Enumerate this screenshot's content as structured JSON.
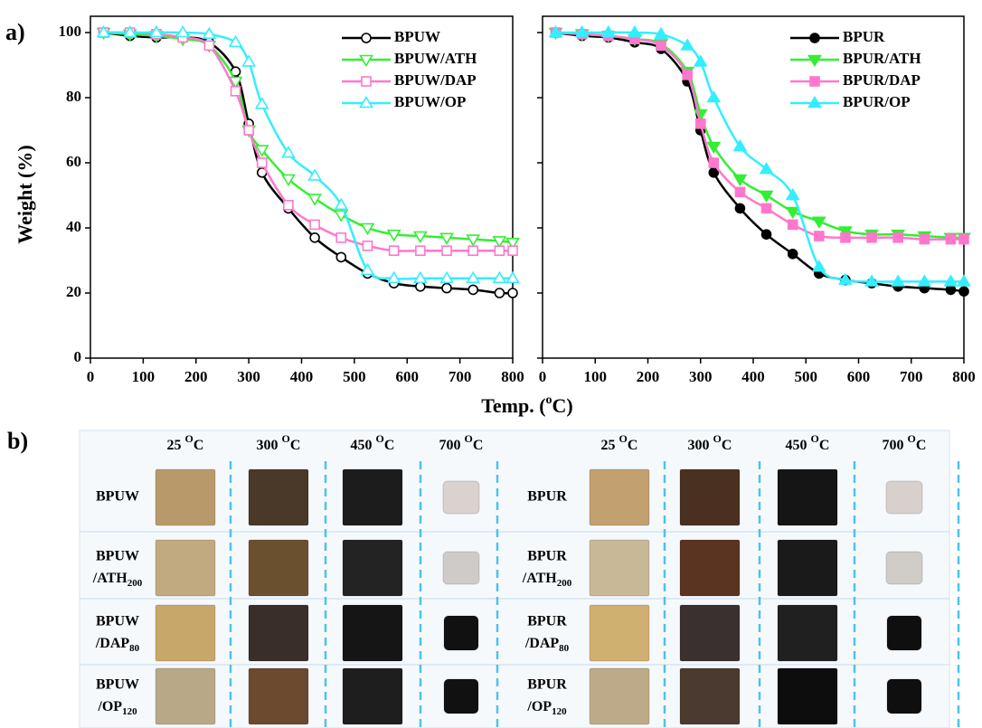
{
  "figure": {
    "panel_a": "a)",
    "panel_b": "b)",
    "y_label": "Weight (%)",
    "x_label": {
      "text": "Temp. (",
      "sup": "o",
      "end": "C)"
    }
  },
  "chart_data": [
    {
      "type": "line",
      "xlim": [
        0,
        800
      ],
      "ylim": [
        0,
        105
      ],
      "xticks": [
        0,
        100,
        200,
        300,
        400,
        500,
        600,
        700,
        800
      ],
      "yticks": [
        0,
        20,
        40,
        60,
        80,
        100
      ],
      "ytick_labels": true,
      "markers_filled": false,
      "x": [
        25,
        75,
        125,
        175,
        225,
        275,
        300,
        325,
        375,
        425,
        475,
        525,
        575,
        625,
        675,
        725,
        775,
        800
      ],
      "series": [
        {
          "name": "BPUW",
          "color": "#000000",
          "marker": "circle",
          "values": [
            100,
            99,
            98.5,
            98.5,
            97,
            88,
            72,
            57,
            46,
            37,
            31,
            26,
            23,
            22,
            21.5,
            21,
            20,
            20
          ]
        },
        {
          "name": "BPUW/ATH",
          "color": "#33ee33",
          "marker": "triangle-down",
          "values": [
            100,
            99.5,
            99,
            98,
            96,
            85,
            70,
            64,
            55,
            49,
            44,
            40,
            38,
            37.5,
            37,
            36.5,
            36,
            35.5
          ]
        },
        {
          "name": "BPUW/DAP",
          "color": "#ff77cc",
          "marker": "square",
          "values": [
            100,
            100,
            99.5,
            98.5,
            96,
            82,
            70,
            60,
            47,
            41,
            37,
            34.5,
            33,
            33,
            33,
            33,
            33,
            33
          ]
        },
        {
          "name": "BPUW/OP",
          "color": "#33eeff",
          "marker": "triangle-up",
          "values": [
            100,
            100,
            100,
            100,
            99.5,
            97,
            91,
            78,
            63,
            56,
            47,
            27,
            24.5,
            24.5,
            24.5,
            24.5,
            24.5,
            24.5
          ]
        }
      ]
    },
    {
      "type": "line",
      "xlim": [
        0,
        800
      ],
      "ylim": [
        0,
        105
      ],
      "xticks": [
        0,
        100,
        200,
        300,
        400,
        500,
        600,
        700,
        800
      ],
      "yticks": [
        0,
        20,
        40,
        60,
        80,
        100
      ],
      "ytick_labels": false,
      "markers_filled": true,
      "x": [
        25,
        75,
        125,
        175,
        225,
        275,
        300,
        325,
        375,
        425,
        475,
        525,
        575,
        625,
        675,
        725,
        775,
        800
      ],
      "series": [
        {
          "name": "BPUR",
          "color": "#000000",
          "marker": "circle",
          "values": [
            100,
            99,
            98.5,
            97,
            95,
            85,
            70,
            57,
            46,
            38,
            32,
            26,
            24,
            23,
            22,
            21.5,
            21,
            20.5
          ]
        },
        {
          "name": "BPUR/ATH",
          "color": "#33ee33",
          "marker": "triangle-down",
          "values": [
            100,
            99.5,
            99,
            98,
            96.5,
            88,
            75,
            65,
            55,
            50,
            45,
            42,
            39,
            38,
            38,
            37.5,
            37,
            37
          ]
        },
        {
          "name": "BPUR/DAP",
          "color": "#ff77cc",
          "marker": "square",
          "values": [
            100,
            99.5,
            99,
            98,
            96,
            87,
            72,
            60,
            51,
            46,
            41,
            37.5,
            37,
            37,
            37,
            36.5,
            36.5,
            36.5
          ]
        },
        {
          "name": "BPUR/OP",
          "color": "#33eeff",
          "marker": "triangle-up",
          "values": [
            100,
            100,
            100,
            100,
            99.5,
            96,
            91,
            80,
            65,
            58,
            50,
            28,
            24,
            23.5,
            23.5,
            23.5,
            23.5,
            23.5
          ]
        }
      ]
    }
  ],
  "table": [
    {
      "columns": [
        {
          "temp": "25",
          "sup": "O",
          "unit": "C"
        },
        {
          "temp": "300",
          "sup": "O",
          "unit": "C"
        },
        {
          "temp": "450",
          "sup": "O",
          "unit": "C"
        },
        {
          "temp": "700",
          "sup": "O",
          "unit": "C"
        }
      ],
      "rows": [
        {
          "name": "BPUW"
        },
        {
          "name": "BPUW",
          "suffix": "/ATH",
          "sub": "200"
        },
        {
          "name": "BPUW",
          "suffix": "/DAP",
          "sub": "80"
        },
        {
          "name": "BPUW",
          "suffix": "/OP",
          "sub": "120"
        }
      ]
    },
    {
      "columns": [
        {
          "temp": "25",
          "sup": "O",
          "unit": "C"
        },
        {
          "temp": "300",
          "sup": "O",
          "unit": "C"
        },
        {
          "temp": "450",
          "sup": "O",
          "unit": "C"
        },
        {
          "temp": "700",
          "sup": "O",
          "unit": "C"
        }
      ],
      "rows": [
        {
          "name": "BPUR"
        },
        {
          "name": "BPUR",
          "suffix": "/ATH",
          "sub": "200"
        },
        {
          "name": "BPUR",
          "suffix": "/DAP",
          "sub": "80"
        },
        {
          "name": "BPUR",
          "suffix": "/OP",
          "sub": "120"
        }
      ]
    }
  ]
}
